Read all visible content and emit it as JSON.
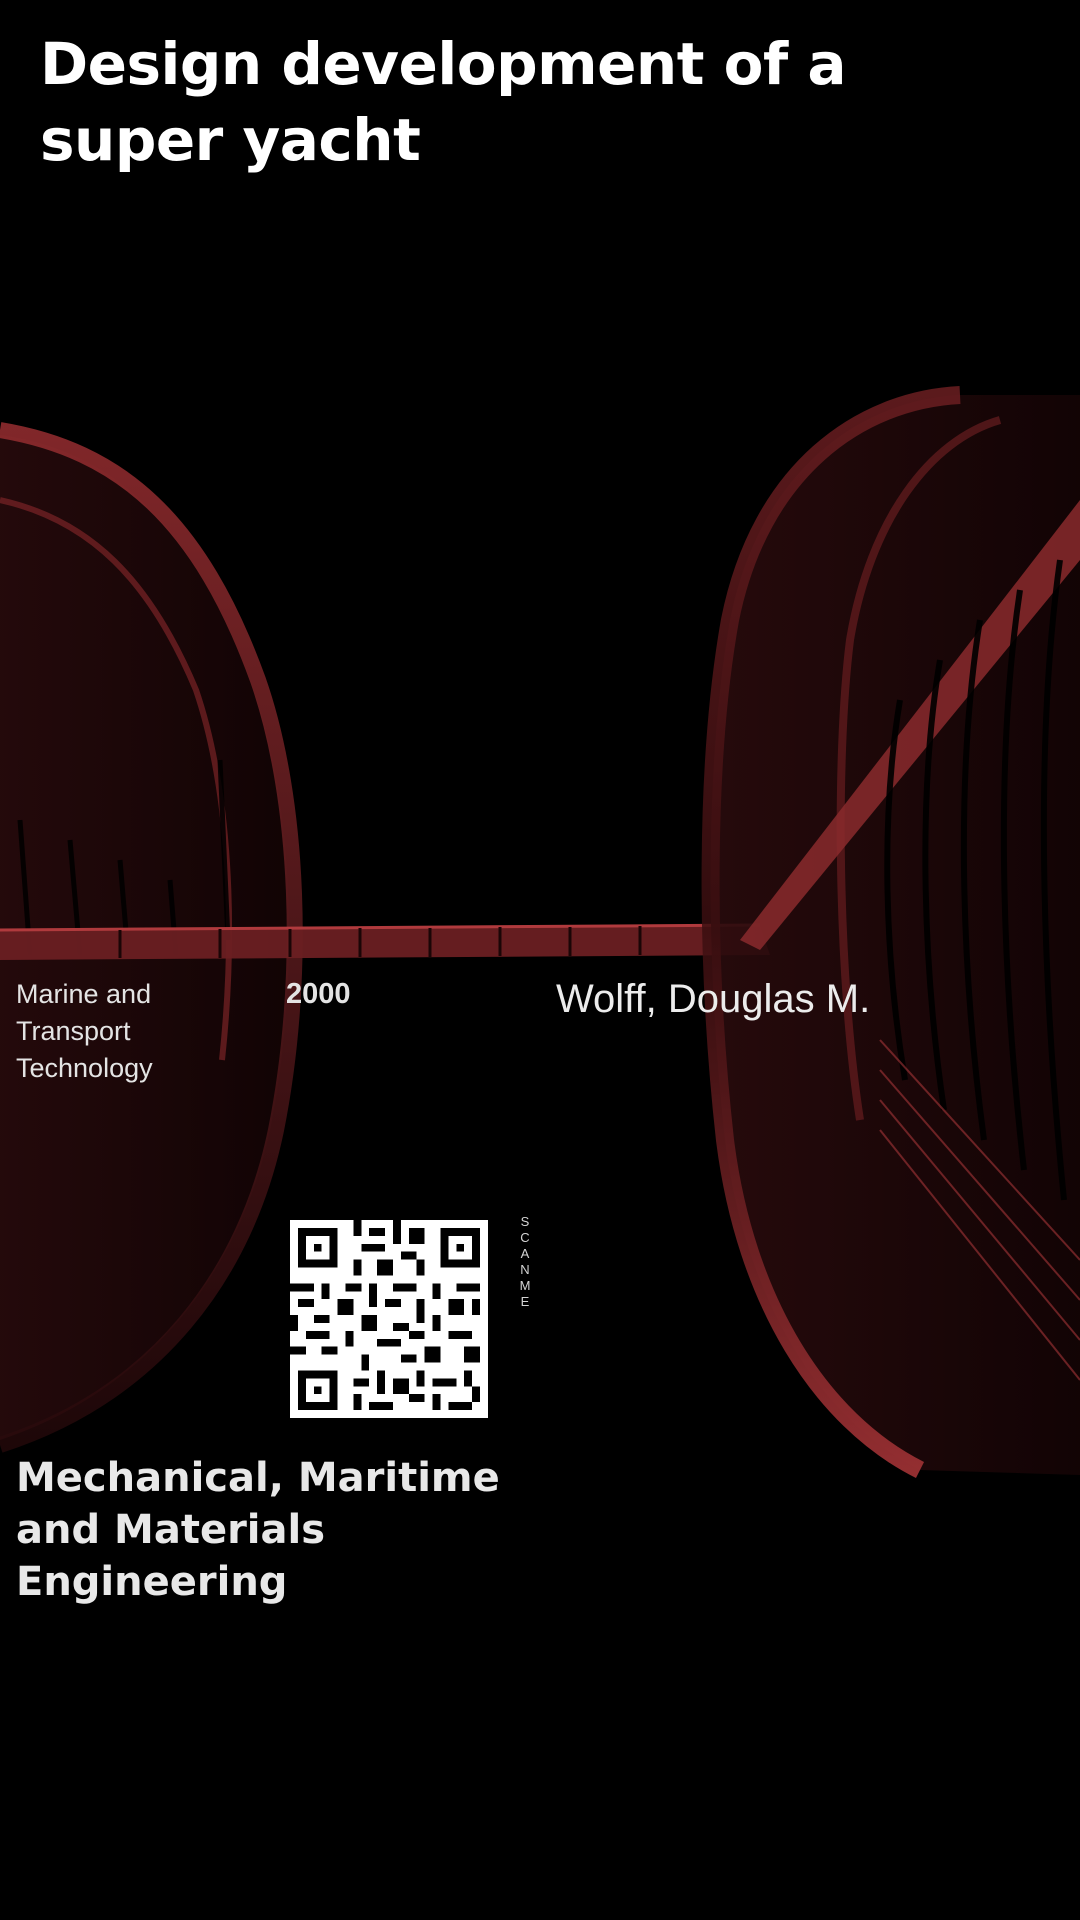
{
  "poster": {
    "title": "Design development of a super yacht",
    "programme": "Marine and Transport Technology",
    "year": "2000",
    "author": "Wolff, Douglas M.",
    "qr_caption": "SCAN ME",
    "faculty": "Mechanical, Maritime and Materials Engineering"
  },
  "theme": {
    "background": "#000000",
    "accent": "#8f2b2e",
    "text": "#ffffff"
  },
  "icons": {
    "qr": "qr-code-icon"
  }
}
